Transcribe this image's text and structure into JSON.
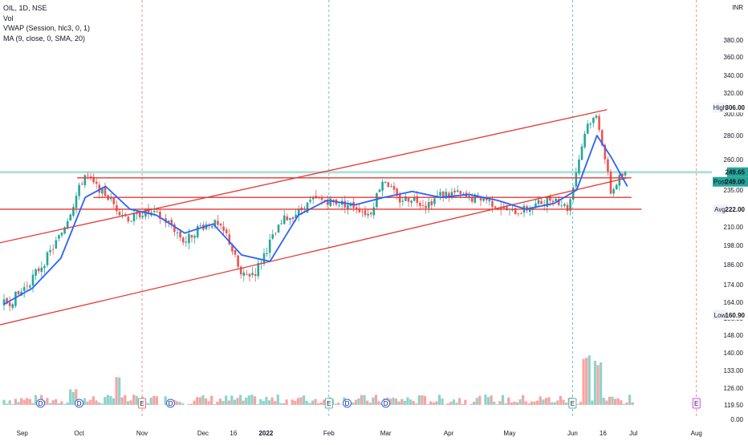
{
  "header": {
    "symbol_line": "OIL, 1D, NSE",
    "indicator_vol": "Vol",
    "indicator_vwap": "VWAP (Session, hlc3, 0, 1)",
    "indicator_ma": "MA (9, close, 0, SMA, 20)",
    "currency": "INR"
  },
  "colors": {
    "up": "#26a69a",
    "down": "#ef5350",
    "vol_up": "#8dd4cc",
    "vol_down": "#f5a5a3",
    "ma": "#2962ff",
    "trend": "#e53935",
    "session_sep": "#e57373",
    "earnings_sep": "#4db6ac",
    "price_tag": "#26a69a",
    "avg_line": "#b2dfdb"
  },
  "badges": {
    "high": {
      "label": "High",
      "value": "306.00"
    },
    "last": {
      "value": "249.65"
    },
    "post": {
      "label": "Post",
      "value": "249.00"
    },
    "avg": {
      "label": "Avg",
      "value": "222.00"
    },
    "low": {
      "label": "Low",
      "value": "160.90"
    }
  },
  "events": {
    "dividend": "D",
    "earnings": "E"
  },
  "chart_data": {
    "type": "candlestick",
    "y_axis_ticks": [
      "380.00",
      "360.00",
      "340.00",
      "320.00",
      "300.00",
      "280.00",
      "260.00",
      "235.00",
      "210.00",
      "198.00",
      "186.00",
      "174.00",
      "164.00",
      "156.00",
      "148.00",
      "140.00",
      "133.00",
      "126.00",
      "119.50",
      "0.00"
    ],
    "x_axis_ticks": [
      "Sep",
      "Oct",
      "Nov",
      "Dec",
      "16",
      "2022",
      "Feb",
      "Mar",
      "Apr",
      "May",
      "Jun",
      "16",
      "Jul",
      "Aug"
    ],
    "session_markers": [
      "Nov",
      "Feb",
      "Jun",
      "Aug"
    ],
    "dividend_markers": [
      "Sep",
      "Oct",
      "Nov",
      "Feb",
      "Mar"
    ],
    "earnings_markers": [
      "Nov",
      "Feb",
      "Jun",
      "Aug"
    ],
    "price_path": [
      [
        "2021-08-25",
        163
      ],
      [
        "2021-09-01",
        168
      ],
      [
        "2021-09-08",
        178
      ],
      [
        "2021-09-15",
        190
      ],
      [
        "2021-09-22",
        205
      ],
      [
        "2021-09-28",
        225
      ],
      [
        "2021-10-04",
        248
      ],
      [
        "2021-10-08",
        240
      ],
      [
        "2021-10-14",
        232
      ],
      [
        "2021-10-20",
        222
      ],
      [
        "2021-10-26",
        215
      ],
      [
        "2021-11-01",
        220
      ],
      [
        "2021-11-08",
        218
      ],
      [
        "2021-11-15",
        212
      ],
      [
        "2021-11-22",
        200
      ],
      [
        "2021-11-29",
        210
      ],
      [
        "2021-12-06",
        213
      ],
      [
        "2021-12-13",
        204
      ],
      [
        "2021-12-20",
        178
      ],
      [
        "2021-12-27",
        182
      ],
      [
        "2022-01-03",
        200
      ],
      [
        "2022-01-10",
        215
      ],
      [
        "2022-01-17",
        220
      ],
      [
        "2022-01-24",
        228
      ],
      [
        "2022-01-31",
        228
      ],
      [
        "2022-02-07",
        226
      ],
      [
        "2022-02-14",
        224
      ],
      [
        "2022-02-21",
        218
      ],
      [
        "2022-02-28",
        245
      ],
      [
        "2022-03-07",
        228
      ],
      [
        "2022-03-14",
        230
      ],
      [
        "2022-03-21",
        225
      ],
      [
        "2022-03-28",
        232
      ],
      [
        "2022-04-04",
        233
      ],
      [
        "2022-04-11",
        229
      ],
      [
        "2022-04-18",
        230
      ],
      [
        "2022-04-25",
        224
      ],
      [
        "2022-05-02",
        220
      ],
      [
        "2022-05-09",
        222
      ],
      [
        "2022-05-16",
        226
      ],
      [
        "2022-05-23",
        230
      ],
      [
        "2022-05-30",
        222
      ],
      [
        "2022-06-03",
        252
      ],
      [
        "2022-06-08",
        290
      ],
      [
        "2022-06-13",
        298
      ],
      [
        "2022-06-16",
        270
      ],
      [
        "2022-06-20",
        232
      ],
      [
        "2022-06-24",
        245
      ],
      [
        "2022-06-28",
        249
      ]
    ],
    "ma_path": [
      [
        "2021-08-25",
        163
      ],
      [
        "2021-09-08",
        172
      ],
      [
        "2021-09-22",
        190
      ],
      [
        "2021-10-04",
        230
      ],
      [
        "2021-10-14",
        238
      ],
      [
        "2021-10-26",
        222
      ],
      [
        "2021-11-08",
        218
      ],
      [
        "2021-11-22",
        206
      ],
      [
        "2021-12-06",
        212
      ],
      [
        "2021-12-20",
        192
      ],
      [
        "2022-01-03",
        188
      ],
      [
        "2022-01-17",
        218
      ],
      [
        "2022-01-31",
        228
      ],
      [
        "2022-02-14",
        225
      ],
      [
        "2022-02-28",
        230
      ],
      [
        "2022-03-14",
        234
      ],
      [
        "2022-03-28",
        230
      ],
      [
        "2022-04-11",
        232
      ],
      [
        "2022-04-25",
        228
      ],
      [
        "2022-05-09",
        222
      ],
      [
        "2022-05-23",
        226
      ],
      [
        "2022-06-03",
        235
      ],
      [
        "2022-06-13",
        280
      ],
      [
        "2022-06-20",
        262
      ],
      [
        "2022-06-28",
        238
      ]
    ],
    "trendlines": [
      {
        "from": [
          "2021-08-10",
          196
        ],
        "to": [
          "2022-06-18",
          304
        ]
      },
      {
        "from": [
          "2021-08-10",
          150
        ],
        "to": [
          "2022-06-28",
          245
        ]
      },
      {
        "from": [
          "2021-09-30",
          245
        ],
        "to": [
          "2022-06-30",
          245
        ]
      },
      {
        "from": [
          "2021-10-08",
          230
        ],
        "to": [
          "2022-06-30",
          230
        ]
      },
      {
        "from": [
          "2021-08-10",
          222
        ],
        "to": [
          "2022-07-05",
          222
        ]
      }
    ],
    "volume_peaks": [
      [
        "2021-09-28",
        126
      ],
      [
        "2021-10-20",
        131
      ],
      [
        "2022-06-08",
        139
      ],
      [
        "2022-06-13",
        137
      ]
    ]
  }
}
